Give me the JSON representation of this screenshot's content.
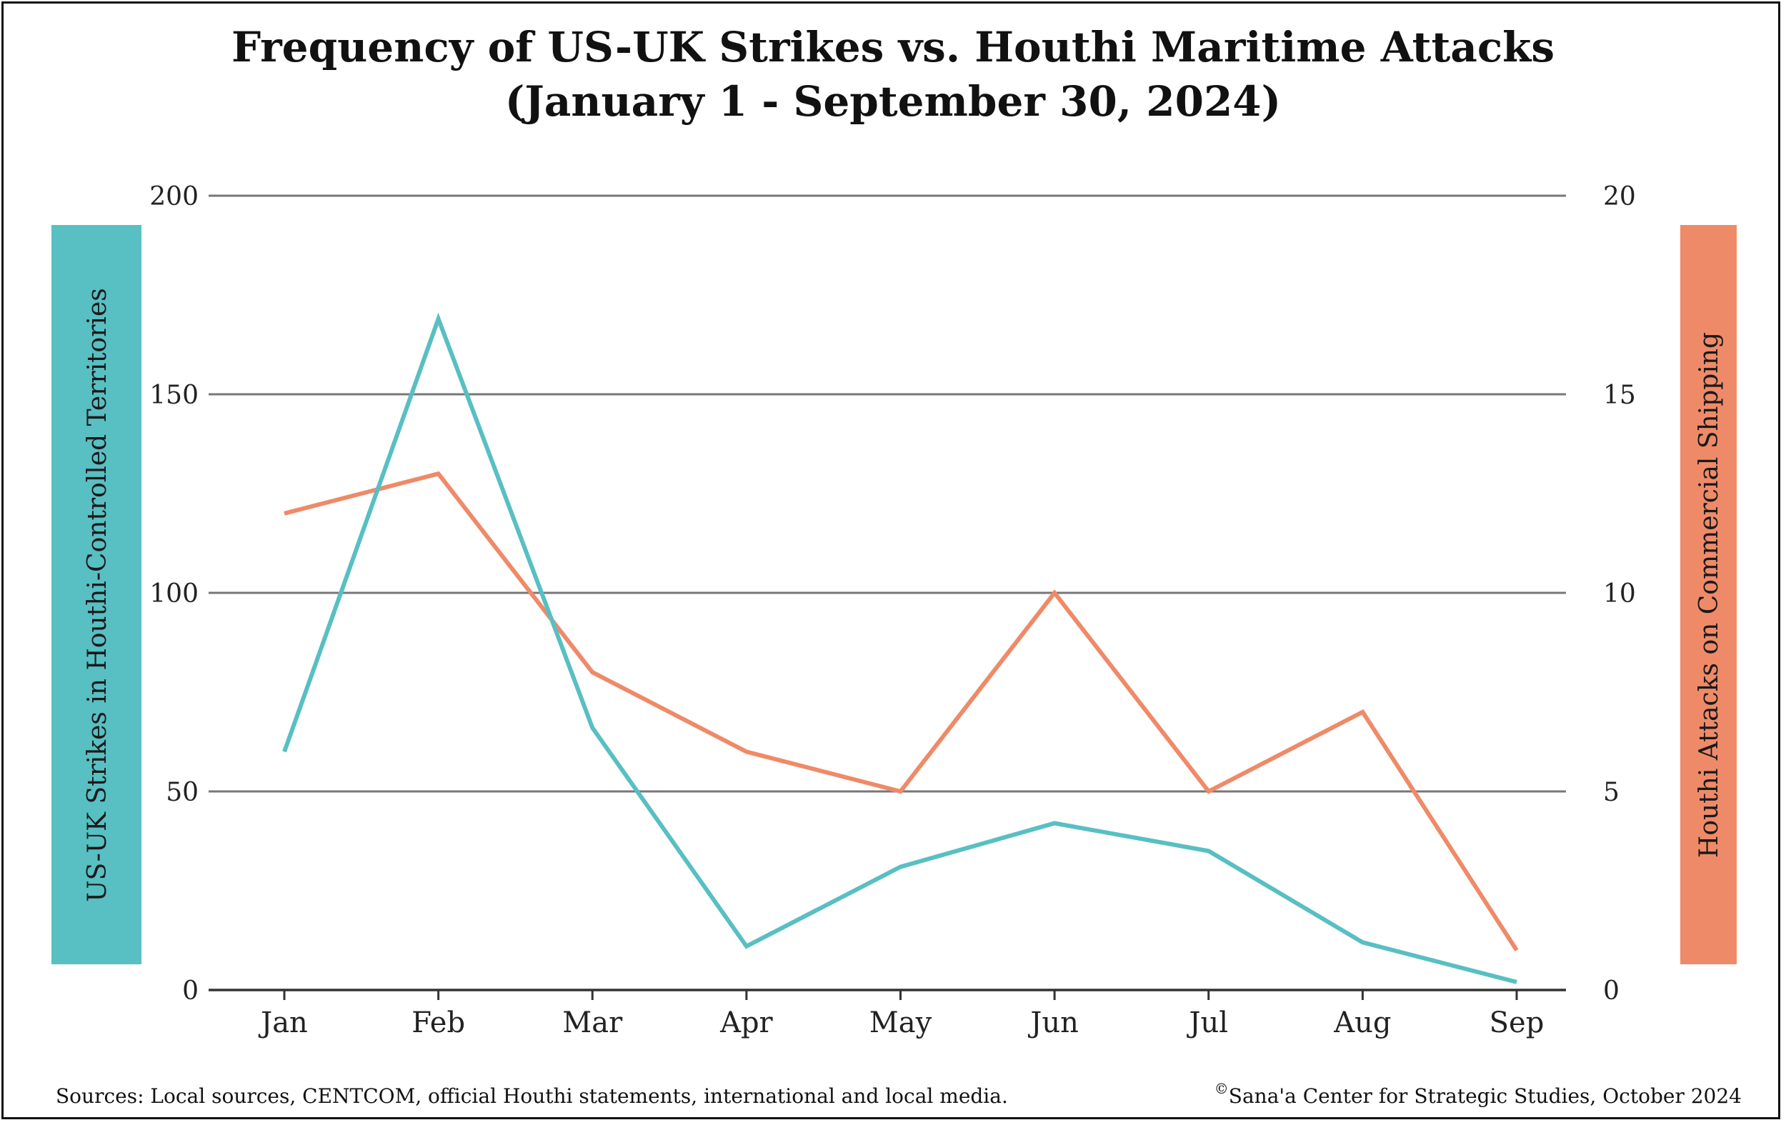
{
  "chart_data": {
    "type": "line",
    "title": "Frequency of US-UK Strikes vs. Houthi Maritime Attacks",
    "subtitle": "(January 1 - September 30, 2024)",
    "categories": [
      "Jan",
      "Feb",
      "Mar",
      "Apr",
      "May",
      "Jun",
      "Jul",
      "Aug",
      "Sep"
    ],
    "y_left": {
      "label": "US-UK Strikes in Houthi-Controlled Territories",
      "range": [
        0,
        200
      ],
      "ticks": [
        "0",
        "50",
        "100",
        "150",
        "200"
      ],
      "color": "#58bfc3"
    },
    "y_right": {
      "label": "Houthi Attacks on Commercial Shipping",
      "range": [
        0,
        20
      ],
      "ticks": [
        "0",
        "5",
        "10",
        "15",
        "20"
      ],
      "color": "#ef8a68"
    },
    "series": [
      {
        "axis": "left",
        "color": "#58bfc3",
        "values": [
          60,
          169,
          66,
          11,
          31,
          42,
          35,
          12,
          2
        ]
      },
      {
        "axis": "right",
        "color": "#ef8a68",
        "values": [
          12,
          13,
          8,
          6,
          5,
          10,
          5,
          7,
          1
        ]
      }
    ],
    "grid": true
  },
  "footer": {
    "sources": "Sources: Local sources, CENTCOM, official Houthi statements, international and local media.",
    "copyright_symbol": "©",
    "credit": "Sana'a Center for Strategic Studies, October 2024"
  }
}
